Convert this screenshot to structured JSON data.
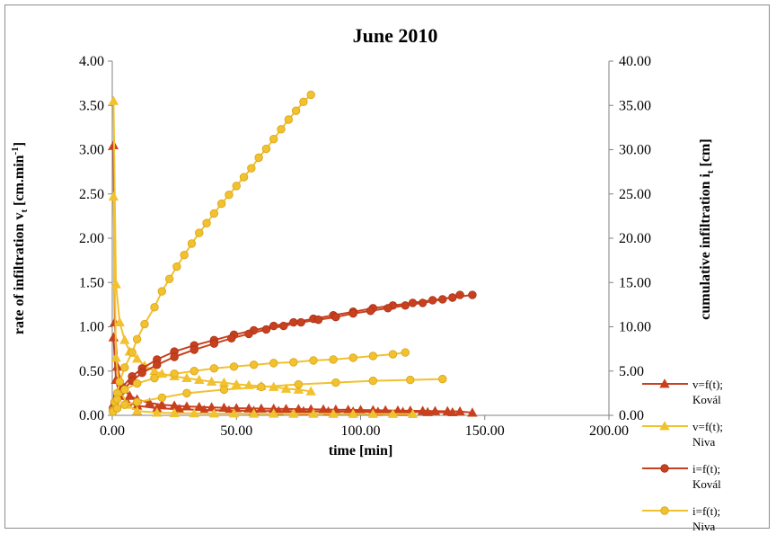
{
  "chart_data": {
    "type": "scatter",
    "title": "June 2010",
    "xlabel": "time [min]",
    "ylabel_left": {
      "main": "rate of infiltration  v",
      "sub": "t",
      "unit_pre": " [cm.min",
      "unit_sup": "-1",
      "unit_post": "]"
    },
    "ylabel_right": {
      "main": "cumulative infiltration  i",
      "sub": "t",
      "unit": " [cm]"
    },
    "xlim": [
      0,
      200
    ],
    "ylim_left": [
      0,
      4
    ],
    "ylim_right": [
      0,
      40
    ],
    "x_ticks": [
      "0.00",
      "50.00",
      "100.00",
      "150.00",
      "200.00"
    ],
    "y_left_ticks": [
      "0.00",
      "0.50",
      "1.00",
      "1.50",
      "2.00",
      "2.50",
      "3.00",
      "3.50",
      "4.00"
    ],
    "y_right_ticks": [
      "0.00",
      "5.00",
      "10.00",
      "15.00",
      "20.00",
      "25.00",
      "30.00",
      "35.00",
      "40.00"
    ],
    "grid": false,
    "legend_position": "right",
    "series": [
      {
        "name": "v=f(t);\nKovál",
        "axis": "left",
        "marker": "triangle",
        "color": "#c8401e",
        "lines": [
          {
            "x": [
              0.5,
              1,
              2,
              4,
              7,
              10,
              15,
              20,
              25,
              30,
              35,
              40,
              45,
              50,
              55,
              60,
              65,
              70,
              75,
              80,
              85,
              90,
              95,
              100,
              105,
              110,
              115,
              120,
              125,
              130,
              135,
              140,
              145
            ],
            "y": [
              3.05,
              1.05,
              0.55,
              0.32,
              0.22,
              0.18,
              0.14,
              0.12,
              0.11,
              0.1,
              0.095,
              0.09,
              0.085,
              0.08,
              0.078,
              0.076,
              0.074,
              0.072,
              0.07,
              0.068,
              0.066,
              0.064,
              0.062,
              0.06,
              0.058,
              0.056,
              0.054,
              0.052,
              0.05,
              0.048,
              0.046,
              0.044,
              0.03
            ]
          },
          {
            "x": [
              0.5,
              1.5,
              3,
              6,
              10,
              18,
              27,
              37,
              47,
              57,
              67,
              77,
              87,
              97,
              107,
              117,
              127,
              137
            ],
            "y": [
              0.88,
              0.4,
              0.22,
              0.15,
              0.11,
              0.08,
              0.07,
              0.06,
              0.055,
              0.05,
              0.048,
              0.046,
              0.044,
              0.042,
              0.04,
              0.038,
              0.036,
              0.034
            ]
          }
        ]
      },
      {
        "name": "v=f(t);\nNiva",
        "axis": "left",
        "marker": "triangle",
        "color": "#f2c12e",
        "lines": [
          {
            "x": [
              0.5,
              1.5,
              3,
              5,
              7,
              10,
              13,
              17,
              20,
              25,
              30,
              35,
              40,
              45,
              50,
              55,
              60,
              65,
              70,
              75,
              80
            ],
            "y": [
              3.55,
              1.48,
              1.05,
              0.85,
              0.72,
              0.64,
              0.56,
              0.5,
              0.47,
              0.44,
              0.42,
              0.4,
              0.38,
              0.37,
              0.35,
              0.34,
              0.33,
              0.32,
              0.3,
              0.29,
              0.27
            ]
          },
          {
            "x": [
              0.5,
              1.5,
              3,
              6,
              10,
              18,
              25,
              33,
              41,
              49,
              57,
              65,
              73,
              81,
              89,
              97,
              105,
              113,
              121
            ],
            "y": [
              2.47,
              0.65,
              0.3,
              0.12,
              0.05,
              0.03,
              0.025,
              0.022,
              0.02,
              0.02,
              0.018,
              0.018,
              0.017,
              0.017,
              0.016,
              0.016,
              0.015,
              0.015,
              0.014
            ]
          }
        ]
      },
      {
        "name": "i=f(t);\nKovál",
        "axis": "right",
        "marker": "circle",
        "color": "#c8401e",
        "lines": [
          {
            "x": [
              0.3,
              1,
              2,
              4,
              8,
              12,
              18,
              25,
              33,
              41,
              49,
              57,
              65,
              73,
              81,
              89,
              97,
              105,
              113,
              121,
              129,
              137,
              145
            ],
            "y": [
              0.8,
              1.5,
              2.3,
              3.2,
              4.4,
              5.3,
              6.3,
              7.2,
              7.9,
              8.5,
              9.1,
              9.6,
              10.1,
              10.5,
              10.9,
              11.3,
              11.7,
              12.1,
              12.4,
              12.7,
              13.0,
              13.3,
              13.6
            ]
          },
          {
            "x": [
              0.3,
              1,
              2,
              4,
              8,
              12,
              18,
              25,
              33,
              41,
              48,
              55,
              62,
              69,
              76,
              83,
              90,
              97,
              104,
              111,
              118,
              125,
              133,
              140
            ],
            "y": [
              0.7,
              1.3,
              2.0,
              2.8,
              3.9,
              4.8,
              5.7,
              6.6,
              7.4,
              8.1,
              8.7,
              9.2,
              9.7,
              10.1,
              10.5,
              10.8,
              11.1,
              11.5,
              11.8,
              12.1,
              12.4,
              12.7,
              13.1,
              13.6
            ]
          }
        ]
      },
      {
        "name": "i=f(t);\nNiva",
        "axis": "right",
        "marker": "circle",
        "color": "#f2c12e",
        "lines": [
          {
            "x": [
              0.3,
              1,
              2,
              3,
              5,
              8,
              10,
              13,
              17,
              20,
              23,
              26,
              29,
              32,
              35,
              38,
              41,
              44,
              47,
              50,
              53,
              56,
              59,
              62,
              65,
              68,
              71,
              74,
              77,
              80
            ],
            "y": [
              0.6,
              1.5,
              2.5,
              3.8,
              5.4,
              7.1,
              8.6,
              10.3,
              12.2,
              14.0,
              15.4,
              16.8,
              18.1,
              19.4,
              20.6,
              21.7,
              22.8,
              23.9,
              24.9,
              25.9,
              26.9,
              27.9,
              29.1,
              30.1,
              31.2,
              32.3,
              33.4,
              34.4,
              35.4,
              36.2
            ]
          },
          {
            "x": [
              0.3,
              2,
              5,
              10,
              17,
              25,
              33,
              41,
              49,
              57,
              65,
              73,
              81,
              89,
              97,
              105,
              113,
              118
            ],
            "y": [
              0.5,
              1.8,
              2.9,
              3.6,
              4.2,
              4.7,
              5.0,
              5.3,
              5.5,
              5.7,
              5.9,
              6.0,
              6.2,
              6.3,
              6.5,
              6.7,
              6.9,
              7.1
            ]
          },
          {
            "x": [
              0.3,
              2,
              5,
              10,
              20,
              30,
              45,
              60,
              75,
              90,
              105,
              120,
              133
            ],
            "y": [
              0.4,
              0.8,
              1.2,
              1.5,
              2.0,
              2.5,
              2.9,
              3.2,
              3.5,
              3.7,
              3.9,
              4.0,
              4.1
            ]
          }
        ]
      }
    ]
  }
}
